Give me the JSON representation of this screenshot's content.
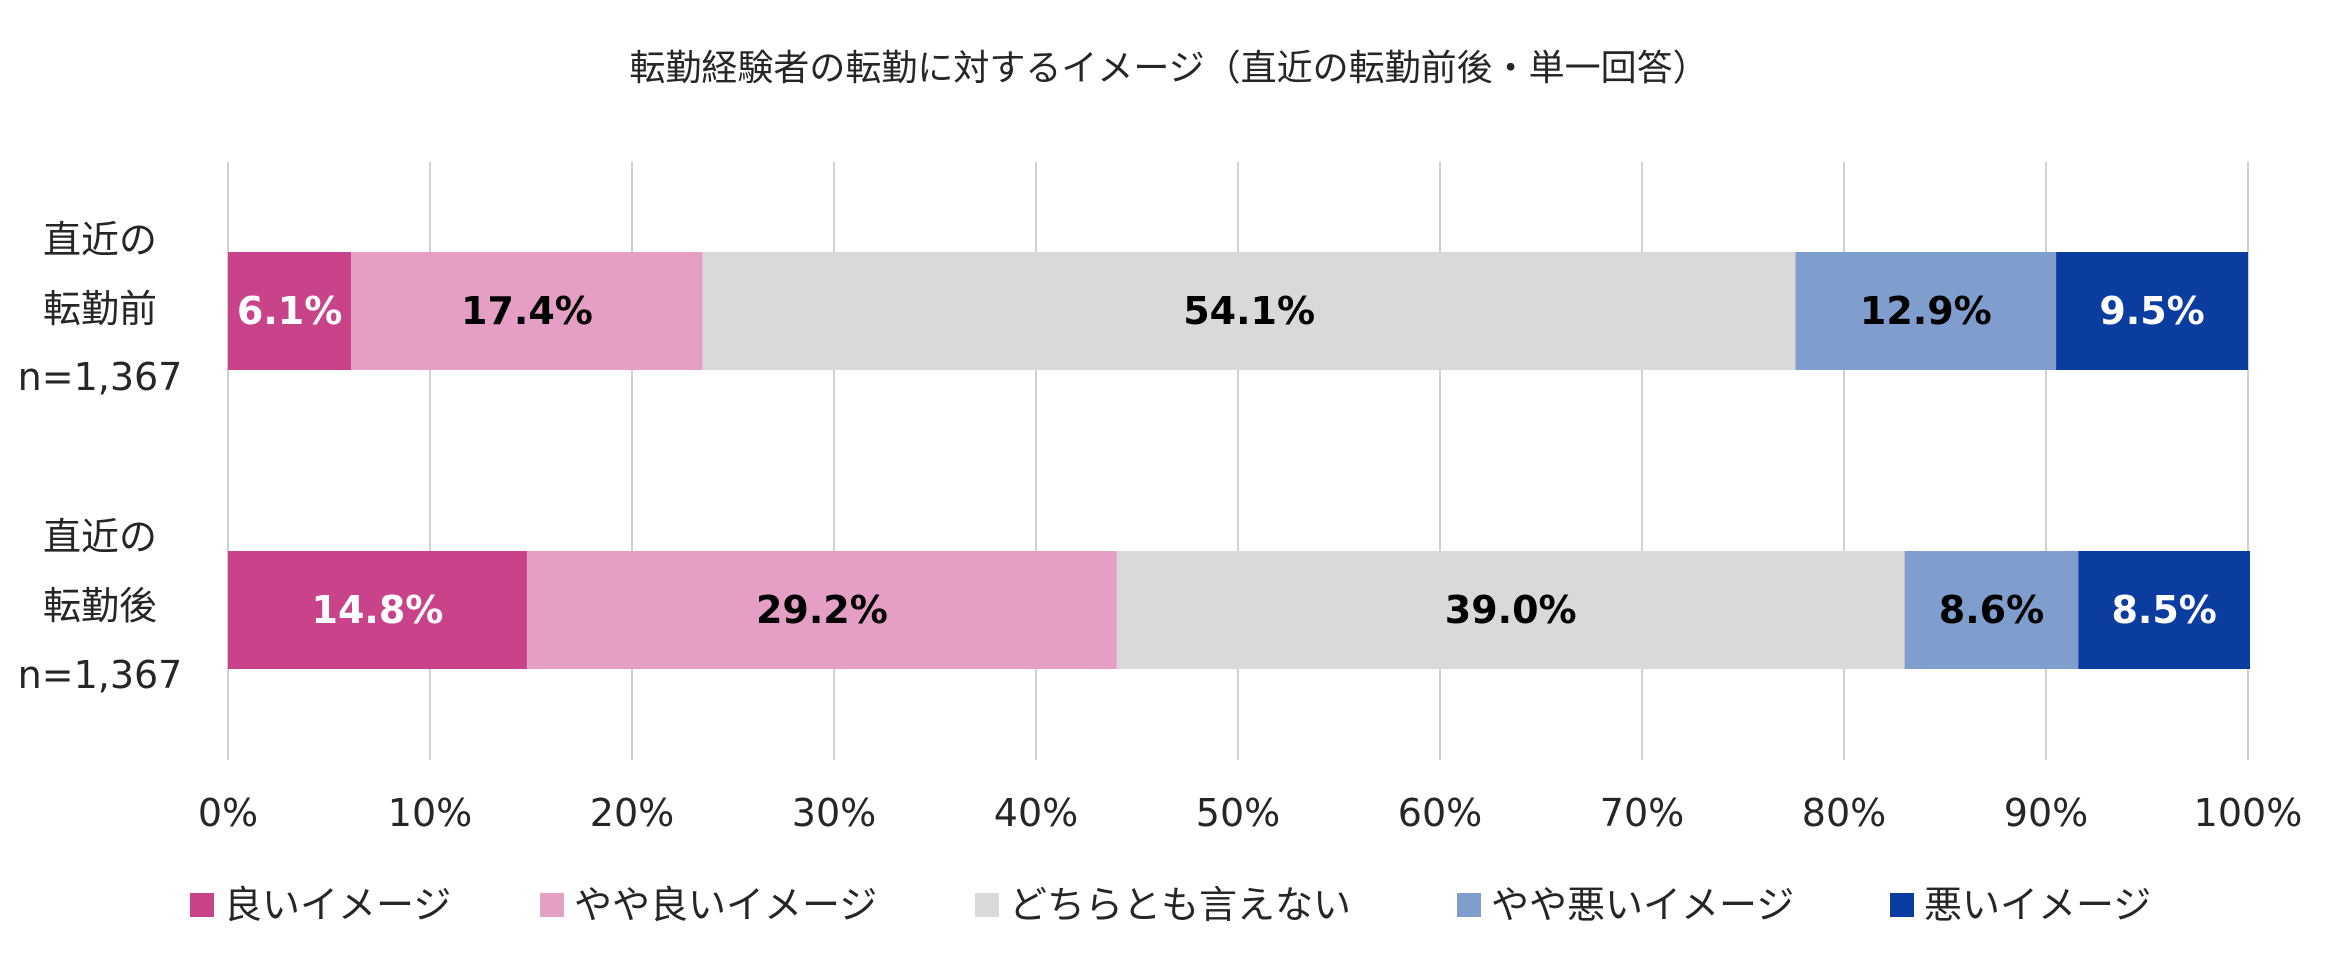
{
  "chart_data": {
    "type": "bar",
    "orientation": "horizontal",
    "stacked": "percent",
    "title": "転勤経験者の転勤に対するイメージ（直近の転勤前後・単一回答）",
    "categories": [
      [
        "直近の",
        "転勤前",
        "n=1,367"
      ],
      [
        "直近の",
        "転勤後",
        "n=1,367"
      ]
    ],
    "series": [
      {
        "name": "良いイメージ",
        "color": "#C8438A",
        "label_color": "#ffffff",
        "values": [
          6.1,
          14.8
        ],
        "labels": [
          "6.1%",
          "14.8%"
        ]
      },
      {
        "name": "やや良いイメージ",
        "color": "#E59FC5",
        "label_color": "#000000",
        "values": [
          17.4,
          29.2
        ],
        "labels": [
          "17.4%",
          "29.2%"
        ]
      },
      {
        "name": "どちらとも言えない",
        "color": "#D9D9D9",
        "label_color": "#000000",
        "values": [
          54.1,
          39.0
        ],
        "labels": [
          "54.1%",
          "39.0%"
        ]
      },
      {
        "name": "やや悪いイメージ",
        "color": "#7F9DCD",
        "label_color": "#000000",
        "values": [
          12.9,
          8.6
        ],
        "labels": [
          "12.9%",
          "8.6%"
        ]
      },
      {
        "name": "悪いイメージ",
        "color": "#0B3C9F",
        "label_color": "#ffffff",
        "values": [
          9.5,
          8.5
        ],
        "labels": [
          "9.5%",
          "8.5%"
        ]
      }
    ],
    "xlim": [
      0,
      100
    ],
    "x_ticks": [
      "0%",
      "10%",
      "20%",
      "30%",
      "40%",
      "50%",
      "60%",
      "70%",
      "80%",
      "90%",
      "100%"
    ],
    "grid": true,
    "legend_position": "bottom"
  }
}
